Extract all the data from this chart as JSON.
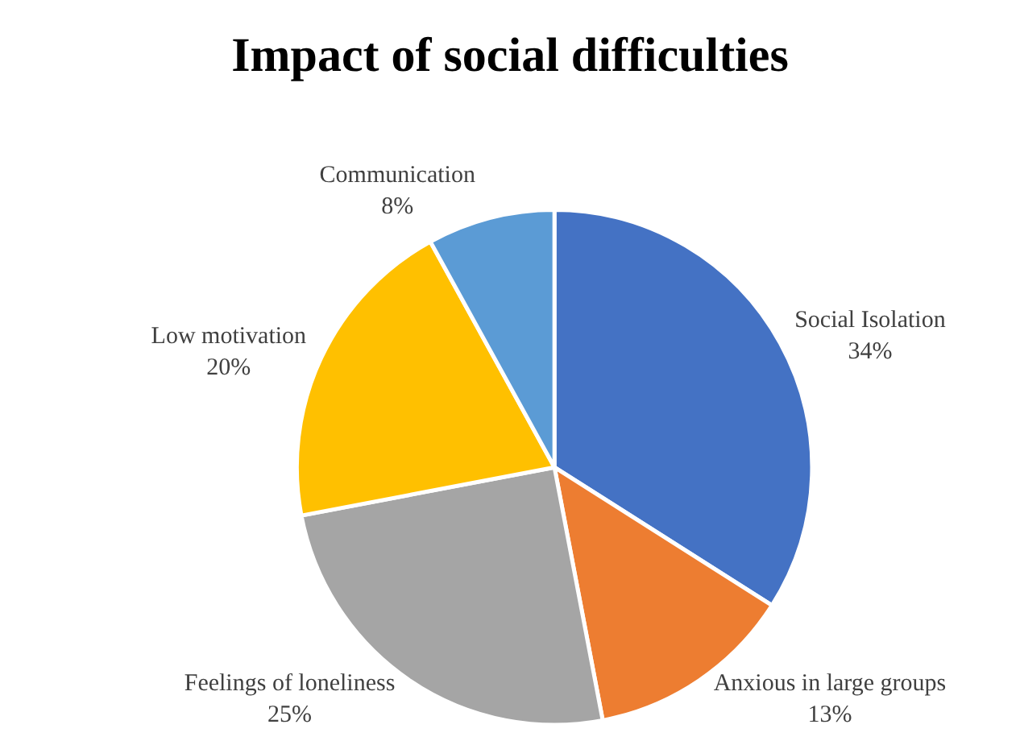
{
  "chart_data": {
    "type": "pie",
    "title": "Impact of social difficulties",
    "categories": [
      "Social Isolation",
      "Anxious in large groups",
      "Feelings of loneliness",
      "Low motivation",
      "Communication"
    ],
    "values": [
      34,
      13,
      25,
      20,
      8
    ],
    "value_labels": [
      "34%",
      "13%",
      "25%",
      "20%",
      "8%"
    ],
    "colors": [
      "#4472c4",
      "#ed7d31",
      "#a5a5a5",
      "#ffc000",
      "#5b9bd5"
    ],
    "legend": false
  }
}
